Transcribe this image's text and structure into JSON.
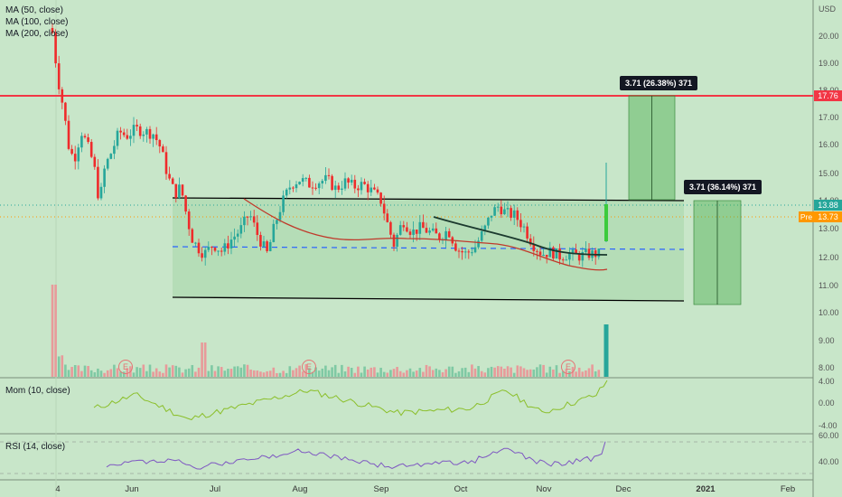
{
  "indicators": {
    "ma50_label": "MA (50, close)",
    "ma100_label": "MA (100, close)",
    "ma200_label": "MA (200, close)",
    "mom_label": "Mom (10, close)",
    "rsi_label": "RSI (14, close)"
  },
  "axis": {
    "currency": "USD",
    "price_ticks": [
      "20.00",
      "19.00",
      "18.00",
      "17.00",
      "16.00",
      "15.00",
      "14.00",
      "13.00",
      "12.00",
      "11.00",
      "10.00",
      "9.00",
      "8.00"
    ],
    "mom_ticks": [
      "4.00",
      "0.00",
      "-4.00"
    ],
    "rsi_ticks": [
      "60.00",
      "40.00"
    ],
    "x_ticks": [
      "4",
      "Jun",
      "Jul",
      "Aug",
      "Sep",
      "Oct",
      "Nov",
      "Dec",
      "2021",
      "Feb"
    ]
  },
  "price_tags": {
    "resistance": "17.76",
    "last": "13.88",
    "pre_label": "Pre",
    "pre_value": "13.73"
  },
  "measures": {
    "upper": "3.71 (26.38%) 371",
    "lower": "3.71 (36.14%) 371"
  },
  "earnings_marker": "E",
  "colors": {
    "background": "#c8e6c9",
    "up_candle": "#26a69a",
    "down_candle": "#ef2b2b",
    "resistance_line": "#f23645",
    "ma_red": "#c0392b",
    "ma_dark": "#1b3a2e",
    "midline": "#2962ff",
    "momentum": "#8bbf2a",
    "rsi": "#7e57c2"
  }
}
